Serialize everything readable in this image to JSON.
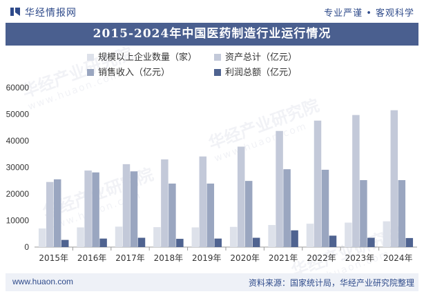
{
  "header": {
    "brand": "华经情报网",
    "slogan": "专业严谨 • 客观科学"
  },
  "watermark": {
    "text": "华经产业研究院",
    "sub": "www.huaon.com"
  },
  "colors": {
    "header_bar": "#4a5f8f",
    "series": [
      "#dde1ea",
      "#c3c9d9",
      "#9aa6c0",
      "#4f6390"
    ]
  },
  "chart_data": {
    "type": "bar",
    "title": "2015-2024年中国医药制造行业运行情况",
    "xlabel": "",
    "ylabel": "",
    "ylim": [
      0,
      60000
    ],
    "yticks": [
      0,
      10000,
      20000,
      30000,
      40000,
      50000,
      60000
    ],
    "ytick_labels": [
      "0",
      "10000",
      "20000",
      "30000",
      "40000",
      "50000",
      "60000"
    ],
    "categories": [
      "2015年",
      "2016年",
      "2017年",
      "2018年",
      "2019年",
      "2020年",
      "2021年",
      "2022年",
      "2023年",
      "2024年"
    ],
    "series": [
      {
        "name": "规模以上企业数量（家）",
        "values": [
          7000,
          7400,
          7700,
          7500,
          7400,
          7600,
          8300,
          8800,
          9200,
          9700
        ]
      },
      {
        "name": "资产总计（亿元）",
        "values": [
          24500,
          28800,
          31200,
          33000,
          34100,
          37800,
          43700,
          47600,
          49700,
          51500
        ]
      },
      {
        "name": "销售收入（亿元）",
        "values": [
          25500,
          28100,
          28500,
          23900,
          23900,
          24900,
          29300,
          29100,
          25200,
          25200
        ]
      },
      {
        "name": "利润总额（亿元）",
        "values": [
          2700,
          3200,
          3500,
          3100,
          3200,
          3500,
          6300,
          4300,
          3500,
          3400
        ]
      }
    ],
    "legend_position": "top"
  },
  "footer": {
    "site": "www.huaon.com",
    "source": "资料来源：国家统计局，华经产业研究院整理"
  }
}
